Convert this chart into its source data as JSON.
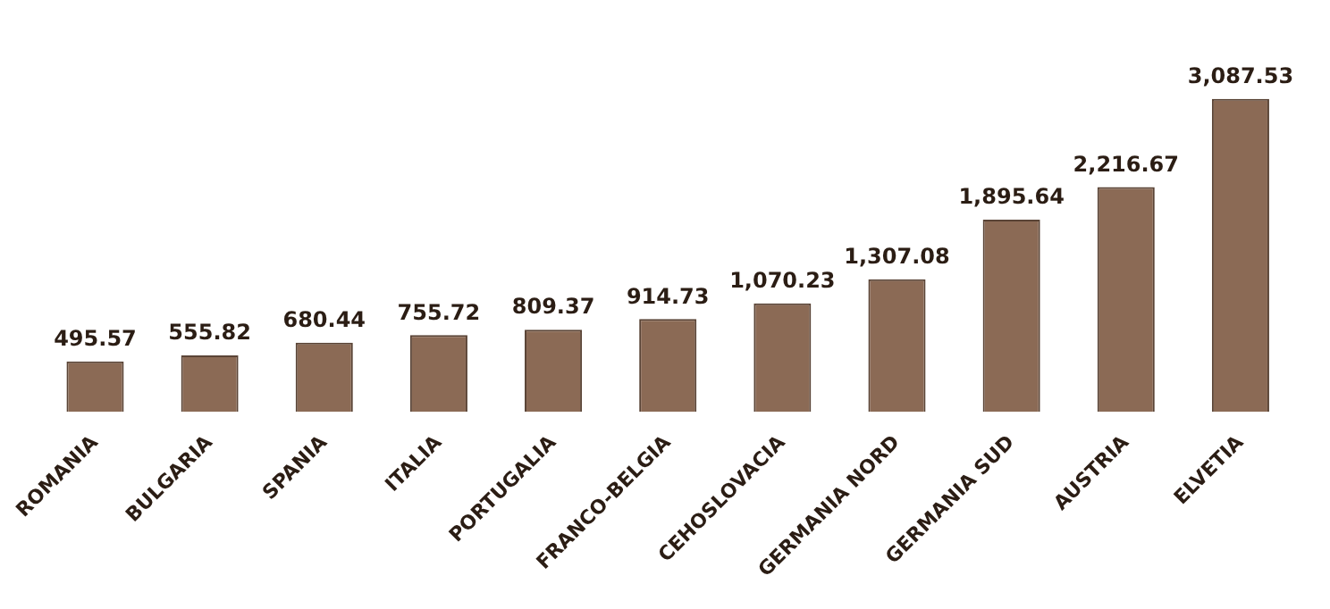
{
  "chart_data": {
    "type": "bar",
    "categories": [
      "ROMANIA",
      "BULGARIA",
      "SPANIA",
      "ITALIA",
      "PORTUGALIA",
      "FRANCO-BELGIA",
      "CEHOSLOVACIA",
      "GERMANIA NORD",
      "GERMANIA SUD",
      "AUSTRIA",
      "ELVETIA"
    ],
    "values": [
      495.57,
      555.82,
      680.44,
      755.72,
      809.37,
      914.73,
      1070.23,
      1307.08,
      1895.64,
      2216.67,
      3087.53
    ],
    "value_labels": [
      "495.57",
      "555.82",
      "680.44",
      "755.72",
      "809.37",
      "914.73",
      "1,070.23",
      "1,307.08",
      "1,895.64",
      "2,216.67",
      "3,087.53"
    ],
    "color": "#8b6a55",
    "grid": false,
    "legend": false
  }
}
